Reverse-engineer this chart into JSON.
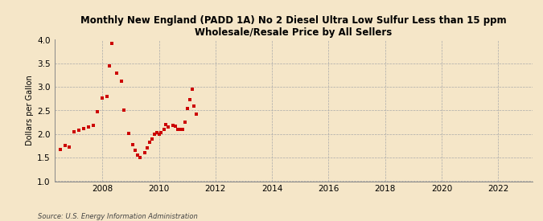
{
  "title": "Monthly New England (PADD 1A) No 2 Diesel Ultra Low Sulfur Less than 15 ppm\nWholesale/Resale Price by All Sellers",
  "ylabel": "Dollars per Gallon",
  "source": "Source: U.S. Energy Information Administration",
  "background_color": "#f5e6c8",
  "dot_color": "#cc0000",
  "xlim_left": 2006.3,
  "xlim_right": 2023.2,
  "ylim_bottom": 1.0,
  "ylim_top": 4.0,
  "xticks": [
    2008,
    2010,
    2012,
    2014,
    2016,
    2018,
    2020,
    2022
  ],
  "yticks": [
    1.0,
    1.5,
    2.0,
    2.5,
    3.0,
    3.5,
    4.0
  ],
  "data_x": [
    2006.5,
    2006.67,
    2006.83,
    2007.0,
    2007.17,
    2007.33,
    2007.5,
    2007.67,
    2007.83,
    2008.0,
    2008.17,
    2008.25,
    2008.33,
    2008.5,
    2008.67,
    2008.75,
    2008.92,
    2009.08,
    2009.17,
    2009.25,
    2009.33,
    2009.5,
    2009.58,
    2009.67,
    2009.75,
    2009.83,
    2009.92,
    2010.0,
    2010.08,
    2010.17,
    2010.25,
    2010.33,
    2010.5,
    2010.58,
    2010.67,
    2010.75,
    2010.83,
    2010.92,
    2011.0,
    2011.08,
    2011.17,
    2011.25,
    2011.33
  ],
  "data_y": [
    1.68,
    1.75,
    1.72,
    2.05,
    2.08,
    2.12,
    2.15,
    2.18,
    2.48,
    2.76,
    2.8,
    3.45,
    3.93,
    3.3,
    3.13,
    2.5,
    2.02,
    1.78,
    1.65,
    1.55,
    1.5,
    1.6,
    1.7,
    1.83,
    1.9,
    2.0,
    2.03,
    2.0,
    2.03,
    2.1,
    2.2,
    2.15,
    2.18,
    2.17,
    2.1,
    2.1,
    2.1,
    2.25,
    2.55,
    2.73,
    2.95,
    2.6,
    2.42
  ]
}
